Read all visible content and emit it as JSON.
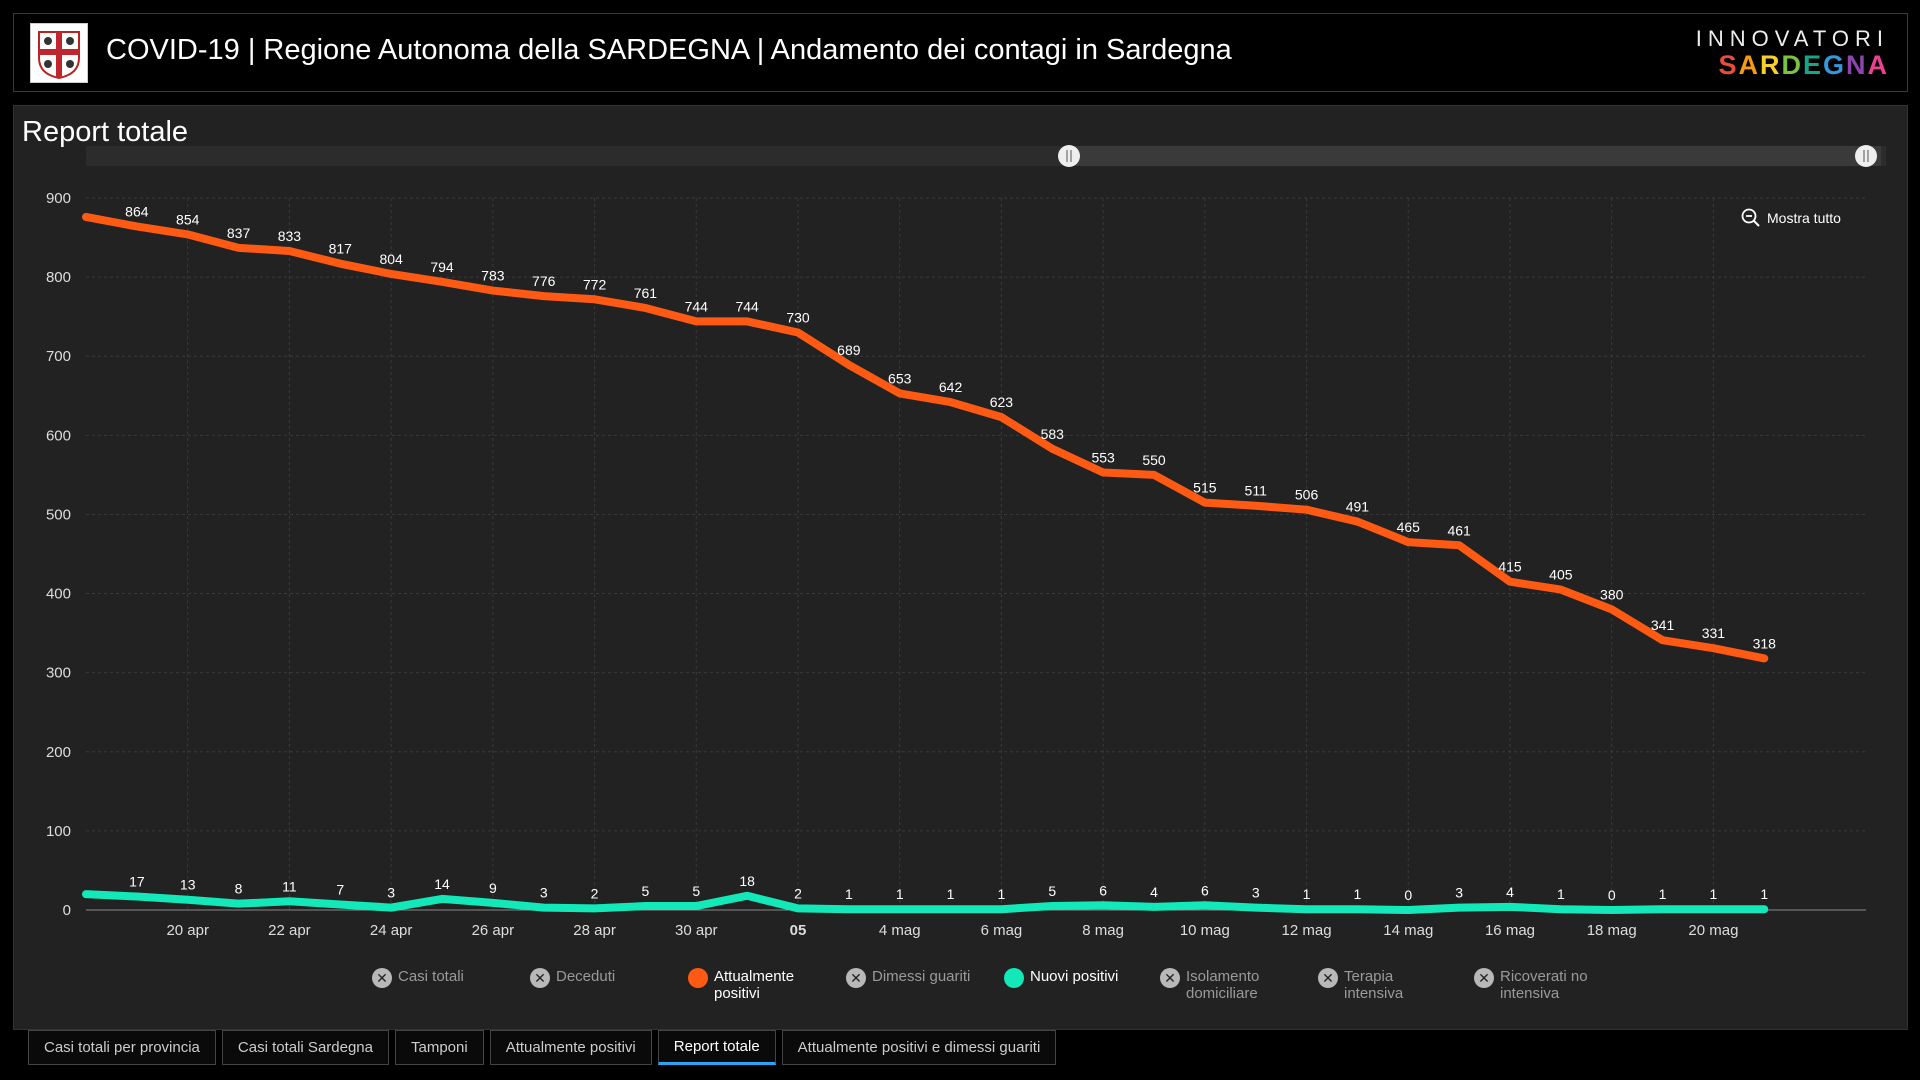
{
  "header": {
    "title": "COVID-19 | Regione Autonoma della SARDEGNA | Andamento dei contagi in Sardegna",
    "brand_top": "INNOVATORI",
    "brand_bottom": [
      "S",
      "A",
      "R",
      "D",
      "E",
      "G",
      "N",
      "A"
    ]
  },
  "panel": {
    "title": "Report totale",
    "zoom_label": "Mostra tutto"
  },
  "colors": {
    "orange": "#ff5a14",
    "teal": "#12e8b8",
    "grid": "#3a3a3a",
    "bg": "#222222"
  },
  "chart_data": {
    "type": "line",
    "title": "Report totale",
    "ylim": [
      0,
      900
    ],
    "yticks": [
      0,
      100,
      200,
      300,
      400,
      500,
      600,
      700,
      800,
      900
    ],
    "x_days": 35,
    "x_ticks": [
      {
        "day": 2,
        "label": "20 apr",
        "bold": false
      },
      {
        "day": 4,
        "label": "22 apr",
        "bold": false
      },
      {
        "day": 6,
        "label": "24 apr",
        "bold": false
      },
      {
        "day": 8,
        "label": "26 apr",
        "bold": false
      },
      {
        "day": 10,
        "label": "28 apr",
        "bold": false
      },
      {
        "day": 12,
        "label": "30 apr",
        "bold": false
      },
      {
        "day": 14,
        "label": "05",
        "bold": true
      },
      {
        "day": 16,
        "label": "4 mag",
        "bold": false
      },
      {
        "day": 18,
        "label": "6 mag",
        "bold": false
      },
      {
        "day": 20,
        "label": "8 mag",
        "bold": false
      },
      {
        "day": 22,
        "label": "10 mag",
        "bold": false
      },
      {
        "day": 24,
        "label": "12 mag",
        "bold": false
      },
      {
        "day": 26,
        "label": "14 mag",
        "bold": false
      },
      {
        "day": 28,
        "label": "16 mag",
        "bold": false
      },
      {
        "day": 30,
        "label": "18 mag",
        "bold": false
      },
      {
        "day": 32,
        "label": "20 mag",
        "bold": false
      }
    ],
    "series": [
      {
        "name": "Attualmente positivi",
        "color": "#ff5a14",
        "start_value": 876,
        "values": [
          864,
          854,
          837,
          833,
          817,
          804,
          794,
          783,
          776,
          772,
          761,
          744,
          744,
          730,
          689,
          653,
          642,
          623,
          583,
          553,
          550,
          515,
          511,
          506,
          491,
          465,
          461,
          415,
          405,
          380,
          341,
          331,
          318
        ]
      },
      {
        "name": "Nuovi positivi",
        "color": "#12e8b8",
        "start_value": 20,
        "values": [
          17,
          13,
          8,
          11,
          7,
          3,
          14,
          9,
          3,
          2,
          5,
          5,
          18,
          2,
          1,
          1,
          1,
          1,
          5,
          6,
          4,
          6,
          3,
          1,
          1,
          0,
          3,
          4,
          1,
          0,
          1,
          1,
          1
        ]
      }
    ]
  },
  "legend": [
    {
      "label": "Casi totali",
      "active": false,
      "color": ""
    },
    {
      "label": "Deceduti",
      "active": false,
      "color": ""
    },
    {
      "label": "Attualmente positivi",
      "active": true,
      "color": "#ff5a14"
    },
    {
      "label": "Dimessi guariti",
      "active": false,
      "color": ""
    },
    {
      "label": "Nuovi positivi",
      "active": true,
      "color": "#12e8b8"
    },
    {
      "label": "Isolamento domiciliare",
      "active": false,
      "color": ""
    },
    {
      "label": "Terapia intensiva",
      "active": false,
      "color": ""
    },
    {
      "label": "Ricoverati no intensiva",
      "active": false,
      "color": ""
    }
  ],
  "tabs": [
    {
      "label": "Casi totali per provincia",
      "active": false
    },
    {
      "label": "Casi totali Sardegna",
      "active": false
    },
    {
      "label": "Tamponi",
      "active": false
    },
    {
      "label": "Attualmente positivi",
      "active": false
    },
    {
      "label": "Report totale",
      "active": true
    },
    {
      "label": "Attualmente positivi e dimessi guariti",
      "active": false
    }
  ]
}
